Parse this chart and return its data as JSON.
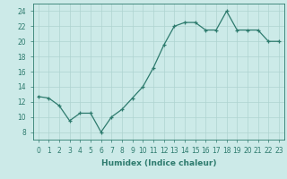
{
  "x": [
    0,
    1,
    2,
    3,
    4,
    5,
    6,
    7,
    8,
    9,
    10,
    11,
    12,
    13,
    14,
    15,
    16,
    17,
    18,
    19,
    20,
    21,
    22,
    23
  ],
  "y": [
    12.7,
    12.5,
    11.5,
    9.5,
    10.5,
    10.5,
    8.0,
    10.0,
    11.0,
    12.5,
    14.0,
    16.5,
    19.5,
    22.0,
    22.5,
    22.5,
    21.5,
    21.5,
    24.0,
    21.5,
    21.5,
    21.5,
    20.0,
    20.0
  ],
  "line_color": "#2e7b6e",
  "marker": "+",
  "bg_color": "#cceae8",
  "grid_color": "#aed4d1",
  "xlabel": "Humidex (Indice chaleur)",
  "ylim": [
    7,
    25
  ],
  "xlim": [
    -0.5,
    23.5
  ],
  "yticks": [
    8,
    10,
    12,
    14,
    16,
    18,
    20,
    22,
    24
  ],
  "xticks": [
    0,
    1,
    2,
    3,
    4,
    5,
    6,
    7,
    8,
    9,
    10,
    11,
    12,
    13,
    14,
    15,
    16,
    17,
    18,
    19,
    20,
    21,
    22,
    23
  ],
  "xtick_labels": [
    "0",
    "1",
    "2",
    "3",
    "4",
    "5",
    "6",
    "7",
    "8",
    "9",
    "10",
    "11",
    "12",
    "13",
    "14",
    "15",
    "16",
    "17",
    "18",
    "19",
    "20",
    "21",
    "22",
    "23"
  ],
  "label_fontsize": 6.5,
  "tick_fontsize": 5.5
}
